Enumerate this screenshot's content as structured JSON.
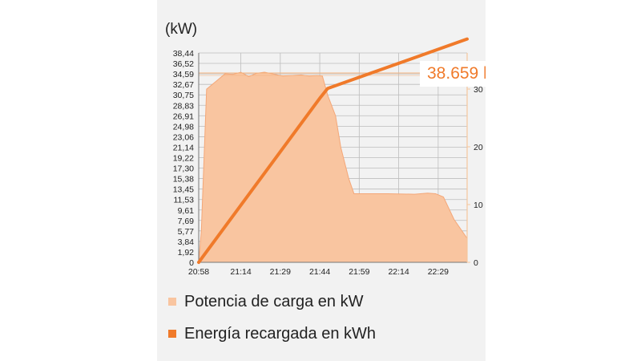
{
  "unit_label": "(kW)",
  "tooltip_value": "38.659 k",
  "legend": [
    {
      "label": "Potencia de carga en kW",
      "color": "#f9c5a0"
    },
    {
      "label": "Energía recargada en kWh",
      "color": "#f07a2a"
    }
  ],
  "colors": {
    "area_fill": "#f9c5a0",
    "area_stroke": "#f4a778",
    "line": "#f07a2a",
    "limit_line": "#f4b27c",
    "grid": "#bdbdbd",
    "right_axis": "#f5c69c"
  },
  "chart_data": {
    "type": "area",
    "x_ticks": [
      "20:58",
      "21:14",
      "21:29",
      "21:44",
      "21:59",
      "22:14",
      "22:29"
    ],
    "y_ticks_left": [
      "0",
      "1,92",
      "3,84",
      "5,77",
      "7,69",
      "9,61",
      "11,53",
      "13,45",
      "15,38",
      "17,30",
      "19,22",
      "21,14",
      "23,06",
      "24,98",
      "26,91",
      "28,83",
      "30,75",
      "32,67",
      "34,59",
      "36,52",
      "38,44"
    ],
    "ylim_left": [
      0,
      38.44
    ],
    "y_ticks_right": [
      "0",
      "10",
      "20",
      "30"
    ],
    "ylim_right": [
      0,
      36.25
    ],
    "grid": true,
    "legend_position": "bottom-left",
    "reference_line": 34.75,
    "series": [
      {
        "name": "Potencia de carga en kW",
        "type": "area",
        "axis": "left",
        "x": [
          "20:58",
          "20:59",
          "21:01",
          "21:05",
          "21:08",
          "21:11",
          "21:14",
          "21:17",
          "21:20",
          "21:23",
          "21:27",
          "21:30",
          "21:33",
          "21:37",
          "21:40",
          "21:43",
          "21:45",
          "21:47",
          "21:50",
          "21:52",
          "21:55",
          "21:57",
          "22:00",
          "22:10",
          "22:20",
          "22:25",
          "22:28",
          "22:31",
          "22:35",
          "22:40"
        ],
        "values": [
          0,
          5.8,
          31.8,
          33.4,
          34.6,
          34.5,
          34.9,
          34.1,
          34.7,
          34.9,
          34.5,
          34.2,
          34.3,
          34.4,
          34.2,
          34.3,
          34.2,
          30.7,
          26.9,
          21.1,
          15.4,
          12.6,
          12.6,
          12.6,
          12.5,
          12.7,
          12.6,
          12.0,
          7.9,
          4.4
        ]
      },
      {
        "name": "Energía recargada en kWh",
        "type": "line",
        "axis": "right",
        "x": [
          "20:58",
          "21:44",
          "21:47",
          "22:40"
        ],
        "values": [
          0,
          28.4,
          30.1,
          38.659
        ]
      }
    ]
  }
}
